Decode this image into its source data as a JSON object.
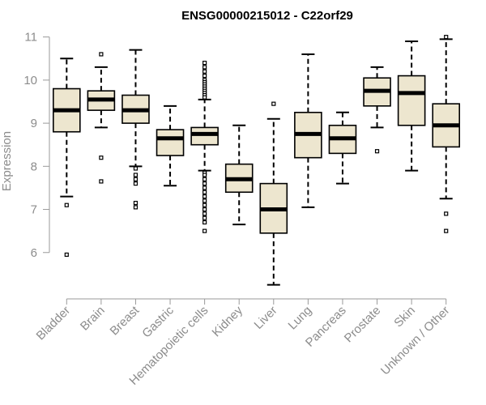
{
  "chart_data": {
    "type": "boxplot",
    "title": "ENSG00000215012 - C22orf29",
    "xlabel": "",
    "ylabel": "Expression",
    "ylim": [
      5.15,
      11.05
    ],
    "yticks": [
      6,
      7,
      8,
      9,
      10,
      11
    ],
    "box_fill": "#ede6cf",
    "categories": [
      "Bladder",
      "Brain",
      "Breast",
      "Gastric",
      "Hematopoietic cells",
      "Kidney",
      "Liver",
      "Lung",
      "Pancreas",
      "Prostate",
      "Skin",
      "Unknown / Other"
    ],
    "series": [
      {
        "name": "Bladder",
        "whisker_low": 7.3,
        "q1": 8.8,
        "median": 9.3,
        "q3": 9.8,
        "whisker_high": 10.5,
        "outliers": [
          7.1,
          5.95
        ]
      },
      {
        "name": "Brain",
        "whisker_low": 8.9,
        "q1": 9.3,
        "median": 9.55,
        "q3": 9.75,
        "whisker_high": 10.3,
        "outliers": [
          10.6,
          8.2,
          7.65
        ]
      },
      {
        "name": "Breast",
        "whisker_low": 8.0,
        "q1": 9.0,
        "median": 9.3,
        "q3": 9.65,
        "whisker_high": 10.7,
        "outliers": [
          7.95,
          7.8,
          7.7,
          7.6,
          7.15,
          7.05
        ]
      },
      {
        "name": "Gastric",
        "whisker_low": 7.55,
        "q1": 8.25,
        "median": 8.65,
        "q3": 8.85,
        "whisker_high": 9.4,
        "outliers": []
      },
      {
        "name": "Hematopoietic cells",
        "whisker_low": 7.9,
        "q1": 8.5,
        "median": 8.75,
        "q3": 8.9,
        "whisker_high": 9.55,
        "outliers": [
          10.4,
          10.3,
          10.2,
          10.1,
          10.0,
          9.95,
          9.9,
          9.85,
          9.8,
          9.75,
          9.7,
          9.65,
          9.6,
          7.85,
          7.8,
          7.7,
          7.6,
          7.5,
          7.4,
          7.3,
          7.2,
          7.1,
          7.0,
          6.9,
          6.8,
          6.7,
          6.5
        ]
      },
      {
        "name": "Kidney",
        "whisker_low": 6.65,
        "q1": 7.4,
        "median": 7.7,
        "q3": 8.05,
        "whisker_high": 8.95,
        "outliers": []
      },
      {
        "name": "Liver",
        "whisker_low": 5.25,
        "q1": 6.45,
        "median": 7.0,
        "q3": 7.6,
        "whisker_high": 9.1,
        "outliers": [
          9.45
        ]
      },
      {
        "name": "Lung",
        "whisker_low": 7.05,
        "q1": 8.2,
        "median": 8.75,
        "q3": 9.25,
        "whisker_high": 10.6,
        "outliers": []
      },
      {
        "name": "Pancreas",
        "whisker_low": 7.6,
        "q1": 8.3,
        "median": 8.65,
        "q3": 8.95,
        "whisker_high": 9.25,
        "outliers": []
      },
      {
        "name": "Prostate",
        "whisker_low": 8.9,
        "q1": 9.4,
        "median": 9.75,
        "q3": 10.05,
        "whisker_high": 10.3,
        "outliers": [
          8.35
        ]
      },
      {
        "name": "Skin",
        "whisker_low": 7.9,
        "q1": 8.95,
        "median": 9.7,
        "q3": 10.1,
        "whisker_high": 10.9,
        "outliers": []
      },
      {
        "name": "Unknown / Other",
        "whisker_low": 7.25,
        "q1": 8.45,
        "median": 8.95,
        "q3": 9.45,
        "whisker_high": 10.95,
        "outliers": [
          11.0,
          6.9,
          6.5
        ]
      }
    ]
  }
}
